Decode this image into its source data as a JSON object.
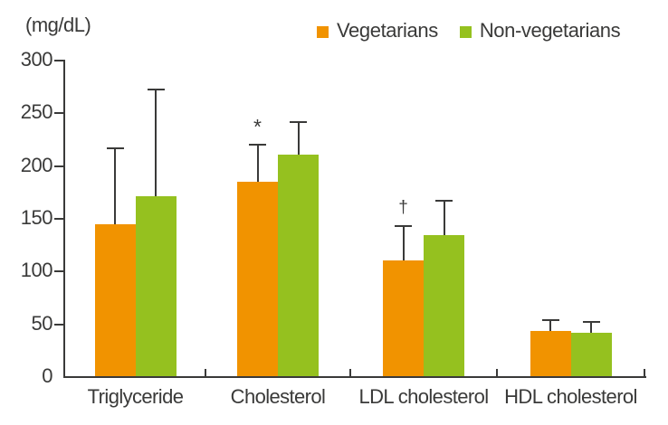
{
  "chart_data": {
    "type": "bar",
    "title": "",
    "unit_label": "(mg/dL)",
    "categories": [
      "Triglyceride",
      "Cholesterol",
      "LDL cholesterol",
      "HDL cholesterol"
    ],
    "series": [
      {
        "name": "Vegetarians",
        "color": "#F19300",
        "values": [
          144,
          184,
          110,
          43
        ],
        "sd_upper": [
          73,
          36,
          33,
          11
        ]
      },
      {
        "name": "Non-vegetarians",
        "color": "#95C11F",
        "values": [
          171,
          210,
          134,
          41
        ],
        "sd_upper": [
          102,
          32,
          33,
          11
        ]
      }
    ],
    "annotations": [
      {
        "text": "*",
        "category_index": 1,
        "series_index": 0
      },
      {
        "text": "†",
        "category_index": 2,
        "series_index": 0
      }
    ],
    "ylim": [
      0,
      300
    ],
    "yticks": [
      0,
      50,
      100,
      150,
      200,
      250,
      300
    ],
    "xlabel": "",
    "ylabel": "",
    "grid": false,
    "error_bars": "upper-only",
    "legend_position": "top",
    "axis_color": "#3a3a39",
    "background_color": "#ffffff"
  }
}
